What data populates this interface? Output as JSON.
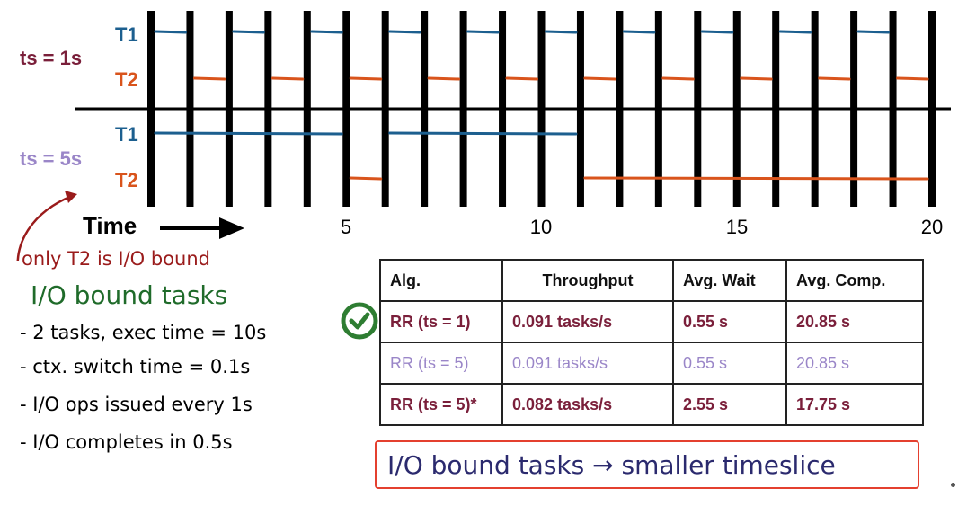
{
  "timeline": {
    "ticks": [
      {
        "label": "5",
        "t": 5
      },
      {
        "label": "10",
        "t": 10
      },
      {
        "label": "15",
        "t": 15
      },
      {
        "label": "20",
        "t": 20
      }
    ],
    "time_label": "Time",
    "colors": {
      "t1": "#1c5f8f",
      "t2": "#d9541c",
      "ts1": "#7a1f3a",
      "ts5": "#9a86c8"
    },
    "panels": [
      {
        "ts_label": "ts = 1s",
        "t1_label": "T1",
        "t2_label": "T2",
        "t1_segments": [
          [
            0,
            1
          ],
          [
            2,
            3
          ],
          [
            4,
            5
          ],
          [
            6,
            7
          ],
          [
            8,
            9
          ],
          [
            10,
            11
          ],
          [
            12,
            13
          ],
          [
            14,
            15
          ],
          [
            16,
            17
          ],
          [
            18,
            19
          ]
        ],
        "t2_segments": [
          [
            1,
            2
          ],
          [
            3,
            4
          ],
          [
            5,
            6
          ],
          [
            7,
            8
          ],
          [
            9,
            10
          ],
          [
            11,
            12
          ],
          [
            13,
            14
          ],
          [
            15,
            16
          ],
          [
            17,
            18
          ],
          [
            19,
            20
          ]
        ]
      },
      {
        "ts_label": "ts = 5s",
        "t1_label": "T1",
        "t2_label": "T2",
        "t1_segments": [
          [
            0,
            5
          ],
          [
            6,
            11
          ]
        ],
        "t2_segments": [
          [
            5,
            6
          ],
          [
            11,
            20
          ]
        ]
      }
    ]
  },
  "notes": {
    "red": "only T2 is I/O bound",
    "green": "I/O bound tasks",
    "bullets": [
      "- 2 tasks, exec time = 10s",
      "- ctx. switch time = 0.1s",
      "- I/O ops issued every 1s",
      "- I/O completes in 0.5s"
    ]
  },
  "table": {
    "headers": [
      "Alg.",
      "Throughput",
      "Avg. Wait",
      "Avg. Comp."
    ],
    "rows": [
      {
        "alg": "RR (ts = 1)",
        "throughput": "0.091 tasks/s",
        "wait": "0.55 s",
        "comp": "20.85 s",
        "style": "dark"
      },
      {
        "alg": "RR (ts = 5)",
        "throughput": "0.091 tasks/s",
        "wait": "0.55 s",
        "comp": "20.85 s",
        "style": "light"
      },
      {
        "alg": "RR (ts = 5)*",
        "throughput": "0.082 tasks/s",
        "wait": "2.55 s",
        "comp": "17.75 s",
        "style": "dark"
      }
    ]
  },
  "conclusion": "I/O bound tasks  →  smaller timeslice"
}
